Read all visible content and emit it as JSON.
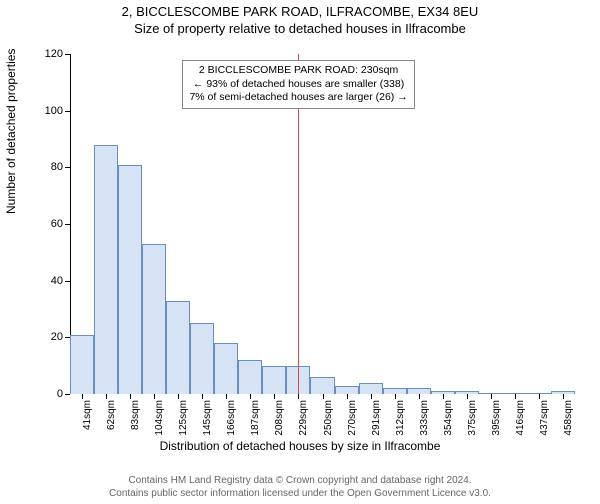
{
  "title_line1": "2, BICCLESCOMBE PARK ROAD, ILFRACOMBE, EX34 8EU",
  "title_line2": "Size of property relative to detached houses in Ilfracombe",
  "yaxis_label": "Number of detached properties",
  "xaxis_label": "Distribution of detached houses by size in Ilfracombe",
  "footer_line1": "Contains HM Land Registry data © Crown copyright and database right 2024.",
  "footer_line2": "Contains public sector information licensed under the Open Government Licence v3.0.",
  "annotation": {
    "line1": "2 BICCLESCOMBE PARK ROAD: 230sqm",
    "line2": "← 93% of detached houses are smaller (338)",
    "line3": "7% of semi-detached houses are larger (26) →"
  },
  "chart": {
    "type": "histogram",
    "background_color": "#ffffff",
    "bar_fill": "#d6e3f4",
    "bar_stroke": "#6a8fbf",
    "bar_stroke_width": 1,
    "marker_color": "#d94a4a",
    "axis_color": "#000000",
    "ylim": [
      0,
      120
    ],
    "yticks": [
      0,
      20,
      40,
      60,
      80,
      100,
      120
    ],
    "ytick_fontsize": 11,
    "x_categories": [
      "41sqm",
      "62sqm",
      "83sqm",
      "104sqm",
      "125sqm",
      "145sqm",
      "166sqm",
      "187sqm",
      "208sqm",
      "229sqm",
      "250sqm",
      "270sqm",
      "291sqm",
      "312sqm",
      "333sqm",
      "354sqm",
      "375sqm",
      "395sqm",
      "416sqm",
      "437sqm",
      "458sqm"
    ],
    "xtick_fontsize": 10,
    "values": [
      21,
      88,
      81,
      53,
      33,
      25,
      18,
      12,
      10,
      10,
      6,
      3,
      4,
      2,
      2,
      1,
      1,
      0,
      0,
      0,
      1
    ],
    "marker_index": 9,
    "title_fontsize": 13,
    "label_fontsize": 12,
    "annotation_border": "#888888",
    "annotation_bg": "#ffffff",
    "annotation_fontsize": 10.5
  }
}
